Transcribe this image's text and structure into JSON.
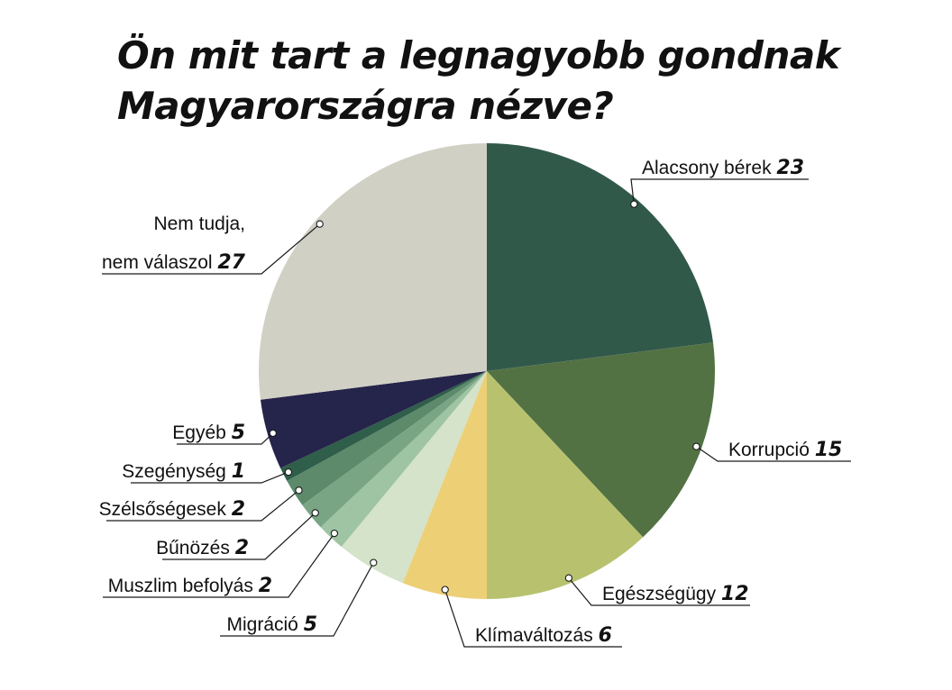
{
  "title": {
    "line1": "Ön mit tart a legnagyobb gondnak",
    "line2": "Magyarországra nézve?"
  },
  "chart_data": {
    "type": "pie",
    "start_angle_deg": 0,
    "direction": "clockwise",
    "slices": [
      {
        "label": "Alacsony bérek",
        "value": 23,
        "value_label": "23",
        "color": "#31594a"
      },
      {
        "label": "Korrupció",
        "value": 15,
        "value_label": "15",
        "color": "#537244"
      },
      {
        "label": "Egészségügy",
        "value": 12,
        "value_label": "12",
        "color": "#b8c26e"
      },
      {
        "label": "Klímaváltozás",
        "value": 6,
        "value_label": "6",
        "color": "#edcf76"
      },
      {
        "label": "Migráció",
        "value": 5,
        "value_label": "5",
        "color": "#d4e3c9"
      },
      {
        "label": "Muszlim befolyás",
        "value": 2,
        "value_label": "2",
        "color": "#9ec4a4"
      },
      {
        "label": "Bűnözés",
        "value": 2,
        "value_label": "2",
        "color": "#7aa585"
      },
      {
        "label": "Szélsőségesek",
        "value": 2,
        "value_label": "2",
        "color": "#5c8a6a"
      },
      {
        "label": "Szegénység",
        "value": 1,
        "value_label": "1",
        "color": "#2f5e4a"
      },
      {
        "label": "Egyéb",
        "value": 5,
        "value_label": "5",
        "color": "#25244a"
      },
      {
        "label": "Nem tudja, nem válaszol",
        "label_lines": [
          "Nem tudja,",
          "nem válaszol"
        ],
        "value": 27,
        "value_label": "27",
        "color": "#d0d0c4"
      }
    ]
  }
}
